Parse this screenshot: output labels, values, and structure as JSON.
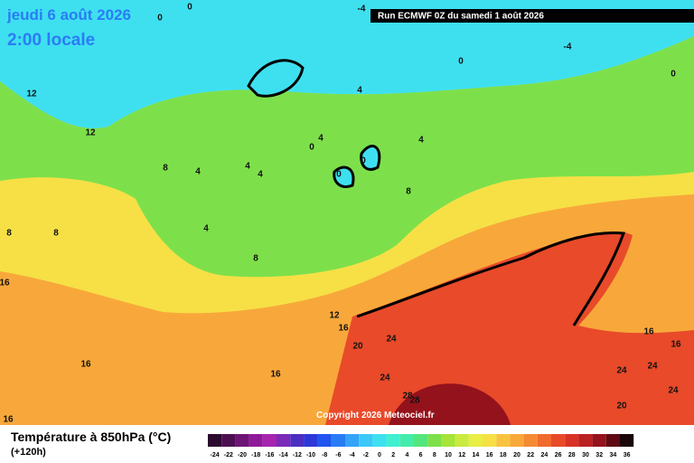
{
  "header": {
    "date": "jeudi 6 août 2026",
    "time": "2:00 locale",
    "run": "Run ECMWF 0Z du samedi 1 août 2026",
    "copyright": "Copyright 2026 Meteociel.fr"
  },
  "legend": {
    "title": "Température à 850hPa (°C)",
    "lead": "(+120h)",
    "scale": [
      -24,
      -22,
      -20,
      -18,
      -16,
      -14,
      -12,
      -10,
      -8,
      -6,
      -4,
      -2,
      0,
      2,
      4,
      6,
      8,
      10,
      12,
      14,
      16,
      18,
      20,
      22,
      24,
      26,
      28,
      30,
      32,
      34,
      36
    ],
    "colors": [
      "#2b0a2e",
      "#4d0f52",
      "#6e1476",
      "#8f1a99",
      "#a624b0",
      "#7a2bb8",
      "#4b2fc0",
      "#2d38d8",
      "#2055f0",
      "#2a7cf5",
      "#35a3f8",
      "#3cc8f8",
      "#3ee0f0",
      "#40f0d0",
      "#44ecab",
      "#52e67c",
      "#7de04a",
      "#a6e43a",
      "#c9ea3e",
      "#e8ee44",
      "#f6e046",
      "#f8c440",
      "#f8a83a",
      "#f58a34",
      "#f06a2e",
      "#e84a2a",
      "#d83226",
      "#bb2022",
      "#94121c",
      "#5e0a12",
      "#1a0508"
    ]
  },
  "contour_labels": [
    "0",
    "0",
    "-4",
    "-4",
    "0",
    "0",
    "4",
    "12",
    "12",
    "4",
    "0",
    "4",
    "0",
    "0",
    "8",
    "4",
    "4",
    "4",
    "8",
    "4",
    "8",
    "8",
    "8",
    "16",
    "12",
    "16",
    "20",
    "24",
    "16",
    "16",
    "24",
    "28",
    "28",
    "24",
    "24",
    "24",
    "20",
    "16",
    "16",
    "16"
  ]
}
